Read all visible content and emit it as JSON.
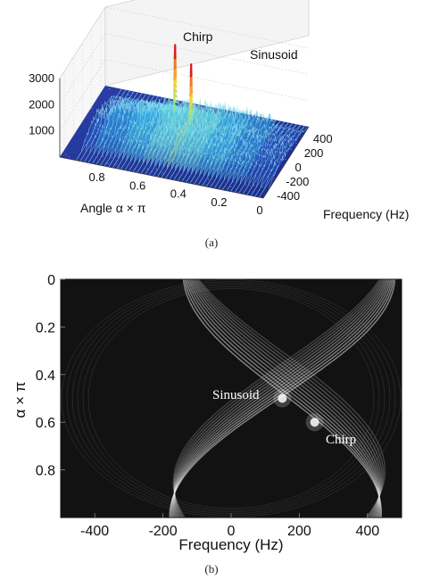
{
  "panel_a": {
    "caption": "(a)",
    "annotations": [
      "Chirp",
      "Sinusoid"
    ]
  },
  "panel_b": {
    "caption": "(b)",
    "annotations": [
      "Sinusoid",
      "Chirp"
    ]
  },
  "chart_data": [
    {
      "type": "surface",
      "title": "",
      "xlabel": "Angle α × π",
      "ylabel": "Frequency (Hz)",
      "zlabel": "",
      "x_ticks": [
        "0.8",
        "0.6",
        "0.4",
        "0.2",
        "0"
      ],
      "y_ticks": [
        "-400",
        "-200",
        "0",
        "200",
        "400"
      ],
      "z_ticks": [
        "1000",
        "2000",
        "3000"
      ],
      "xlim": [
        0,
        1
      ],
      "ylim": [
        -500,
        500
      ],
      "zlim": [
        0,
        3000
      ],
      "colormap": "jet",
      "peaks": [
        {
          "label": "Chirp",
          "angle": 0.6,
          "frequency": 245,
          "magnitude": 3000
        },
        {
          "label": "Sinusoid",
          "angle": 0.5,
          "frequency": 150,
          "magnitude": 2650
        }
      ],
      "annotations": [
        "Chirp",
        "Sinusoid"
      ]
    },
    {
      "type": "heatmap",
      "title": "",
      "xlabel": "Frequency (Hz)",
      "ylabel": "α × π",
      "x_ticks": [
        "-400",
        "-200",
        "0",
        "200",
        "400"
      ],
      "y_ticks": [
        "0",
        "0.2",
        "0.4",
        "0.6",
        "0.8"
      ],
      "xlim": [
        -500,
        500
      ],
      "ylim": [
        1,
        0
      ],
      "colormap": "gray",
      "peaks": [
        {
          "label": "Sinusoid",
          "angle": 0.5,
          "frequency": 150
        },
        {
          "label": "Chirp",
          "angle": 0.6,
          "frequency": 245
        }
      ],
      "annotations": [
        "Sinusoid",
        "Chirp"
      ]
    }
  ]
}
